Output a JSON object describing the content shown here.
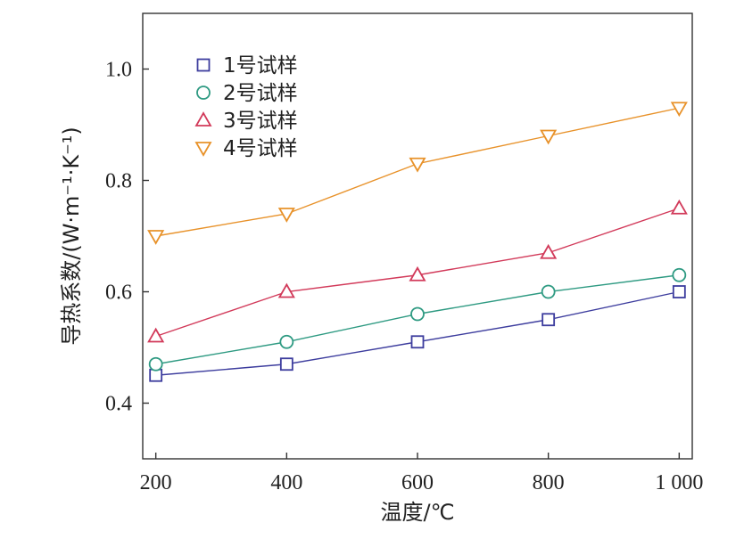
{
  "chart_data": {
    "type": "line",
    "title": "",
    "xlabel": "温度/℃",
    "ylabel": "导热系数/(W·m⁻¹·K⁻¹)",
    "x": [
      200,
      400,
      600,
      800,
      1000
    ],
    "x_tick_labels": [
      "200",
      "400",
      "600",
      "800",
      "1 000"
    ],
    "xlim": [
      180,
      1020
    ],
    "ylim": [
      0.3,
      1.1
    ],
    "y_ticks": [
      0.4,
      0.6,
      0.8,
      1.0
    ],
    "y_tick_labels": [
      "0.4",
      "0.6",
      "0.8",
      "1.0"
    ],
    "grid": false,
    "legend_position": "top-left",
    "series": [
      {
        "name": "1号试样",
        "marker": "square",
        "color": "#3d3d9e",
        "values": [
          0.45,
          0.47,
          0.51,
          0.55,
          0.6
        ]
      },
      {
        "name": "2号试样",
        "marker": "circle",
        "color": "#2e9a82",
        "values": [
          0.47,
          0.51,
          0.56,
          0.6,
          0.63
        ]
      },
      {
        "name": "3号试样",
        "marker": "triangle-up",
        "color": "#d23a5a",
        "values": [
          0.52,
          0.6,
          0.63,
          0.67,
          0.75
        ]
      },
      {
        "name": "4号试样",
        "marker": "triangle-down",
        "color": "#e8922a",
        "values": [
          0.7,
          0.74,
          0.83,
          0.88,
          0.93
        ]
      }
    ]
  }
}
